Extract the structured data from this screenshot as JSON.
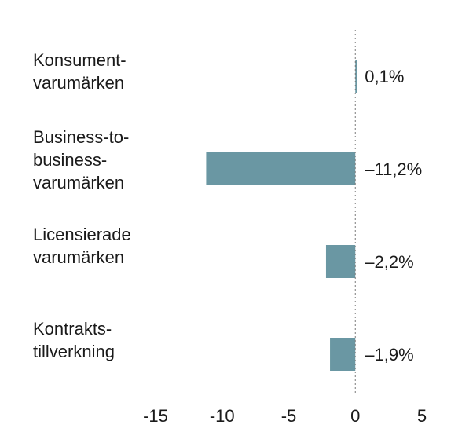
{
  "chart_data": {
    "type": "bar",
    "orientation": "horizontal",
    "categories": [
      [
        "Konsument-",
        "varumärken"
      ],
      [
        "Business-to-",
        "business-",
        "varumärken"
      ],
      [
        "Licensierade",
        "varumärken"
      ],
      [
        "Kontrakts-",
        "tillverkning"
      ]
    ],
    "values": [
      0.1,
      -11.2,
      -2.2,
      -1.9
    ],
    "value_labels": [
      "0,1%",
      "–11,2%",
      "–2,2%",
      "–1,9%"
    ],
    "xlim": [
      -15,
      5
    ],
    "xticks": [
      -15,
      -10,
      -5,
      0,
      5
    ],
    "xtick_labels": [
      "-15",
      "-10",
      "-5",
      "0",
      "5"
    ],
    "zero_line": "dotted",
    "grid": false,
    "bar_color": "#6a97a3"
  }
}
